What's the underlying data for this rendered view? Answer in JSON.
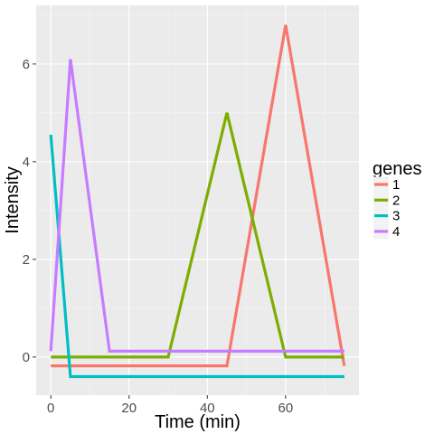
{
  "chart_data": {
    "type": "line",
    "title": "",
    "xlabel": "Time (min)",
    "ylabel": "Intensity",
    "xlim": [
      -3.75,
      78.75
    ],
    "ylim": [
      -0.78,
      7.2
    ],
    "xticks": [
      0,
      20,
      40,
      60
    ],
    "yticks": [
      0,
      2,
      4,
      6
    ],
    "grid": true,
    "legend": {
      "title": "genes",
      "position": "right"
    },
    "x": [
      0,
      5,
      15,
      30,
      45,
      60,
      75
    ],
    "series": [
      {
        "name": "1",
        "color": "#F8766D",
        "values": [
          -0.18,
          -0.18,
          -0.18,
          -0.18,
          -0.18,
          6.8,
          -0.18
        ]
      },
      {
        "name": "2",
        "color": "#7CAE00",
        "values": [
          0.0,
          0.0,
          0.0,
          0.0,
          5.0,
          0.0,
          0.0
        ]
      },
      {
        "name": "3",
        "color": "#00BFC4",
        "values": [
          4.55,
          -0.4,
          -0.4,
          -0.4,
          -0.4,
          -0.4,
          -0.4
        ]
      },
      {
        "name": "4",
        "color": "#C77CFF",
        "values": [
          0.12,
          6.1,
          0.12,
          0.12,
          0.12,
          0.12,
          0.12
        ]
      }
    ]
  }
}
